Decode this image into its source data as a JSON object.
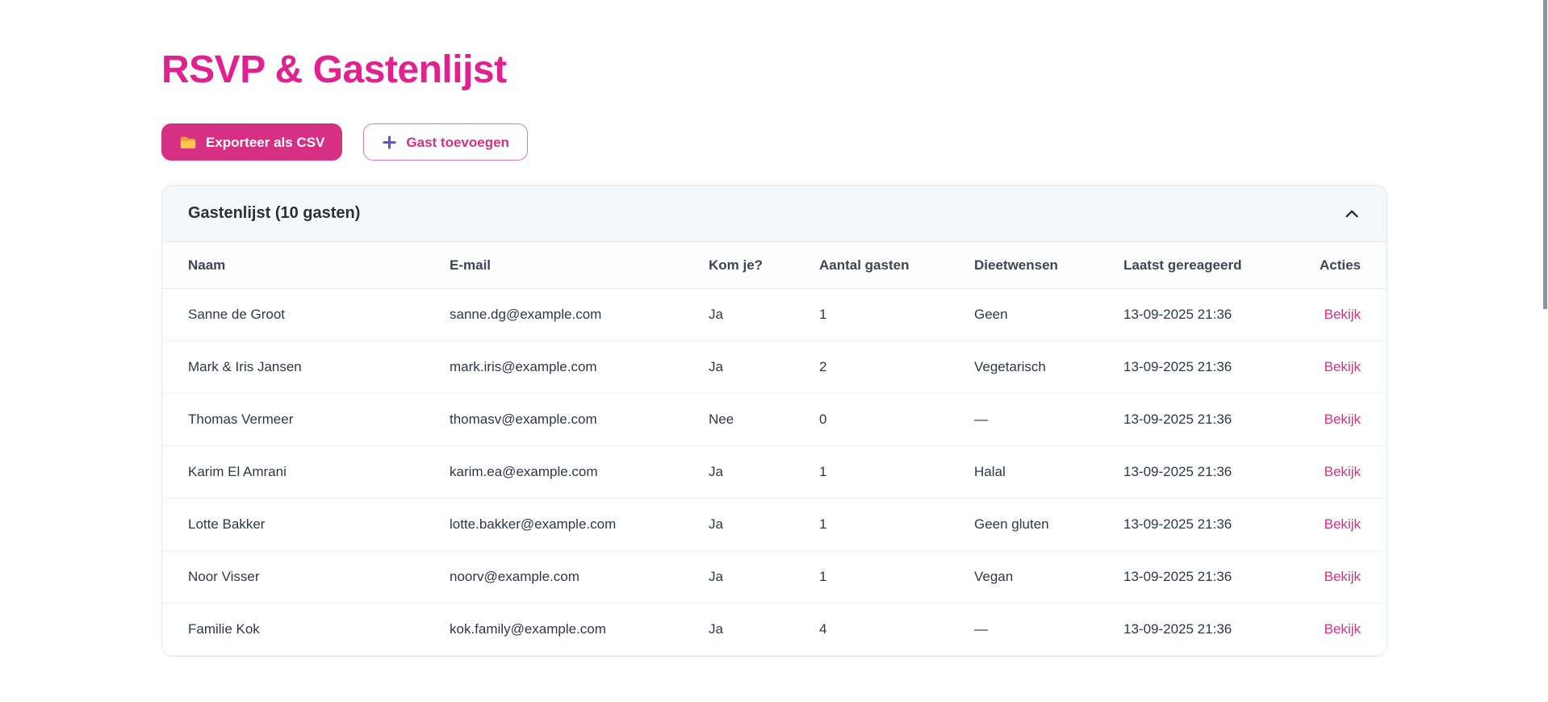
{
  "page": {
    "title": "RSVP & Gastenlijst"
  },
  "toolbar": {
    "export_csv_label": "Exporteer als CSV",
    "add_guest_label": "Gast toevoegen"
  },
  "guest_card": {
    "title": "Gastenlijst (10 gasten)",
    "guest_count_shown_in_title": "10",
    "columns": [
      "Naam",
      "E-mail",
      "Kom je?",
      "Aantal gasten",
      "Dieetwensen",
      "Laatst gereageerd",
      "Acties"
    ],
    "rows": [
      {
        "naam": "Sanne de Groot",
        "email": "sanne.dg@example.com",
        "kom_je": "Ja",
        "aantal_gasten": "1",
        "dieetwensen": "Geen",
        "laatst_gereageerd": "13-09-2025 21:36",
        "actie": "Bekijk"
      },
      {
        "naam": "Mark & Iris Jansen",
        "email": "mark.iris@example.com",
        "kom_je": "Ja",
        "aantal_gasten": "2",
        "dieetwensen": "Vegetarisch",
        "laatst_gereageerd": "13-09-2025 21:36",
        "actie": "Bekijk"
      },
      {
        "naam": "Thomas Vermeer",
        "email": "thomasv@example.com",
        "kom_je": "Nee",
        "aantal_gasten": "0",
        "dieetwensen": "—",
        "laatst_gereageerd": "13-09-2025 21:36",
        "actie": "Bekijk"
      },
      {
        "naam": "Karim El Amrani",
        "email": "karim.ea@example.com",
        "kom_je": "Ja",
        "aantal_gasten": "1",
        "dieetwensen": "Halal",
        "laatst_gereageerd": "13-09-2025 21:36",
        "actie": "Bekijk"
      },
      {
        "naam": "Lotte Bakker",
        "email": "lotte.bakker@example.com",
        "kom_je": "Ja",
        "aantal_gasten": "1",
        "dieetwensen": "Geen gluten",
        "laatst_gereageerd": "13-09-2025 21:36",
        "actie": "Bekijk"
      },
      {
        "naam": "Noor Visser",
        "email": "noorv@example.com",
        "kom_je": "Ja",
        "aantal_gasten": "1",
        "dieetwensen": "Vegan",
        "laatst_gereageerd": "13-09-2025 21:36",
        "actie": "Bekijk"
      },
      {
        "naam": "Familie Kok",
        "email": "kok.family@example.com",
        "kom_je": "Ja",
        "aantal_gasten": "4",
        "dieetwensen": "—",
        "laatst_gereageerd": "13-09-2025 21:36",
        "actie": "Bekijk"
      }
    ]
  },
  "icons": {
    "export_button_icon": "folder-icon",
    "add_button_icon": "plus-icon",
    "card_collapse_icon": "chevron-up-icon"
  },
  "colors": {
    "brand_pink": "#e0218f",
    "button_pink": "#d53083",
    "link_pink": "#d92d84",
    "plus_purple": "#5f55ce",
    "folder_amber": "#fcc64a",
    "card_header_bg": "#f5f8fa",
    "text_dark": "#2f3744"
  }
}
